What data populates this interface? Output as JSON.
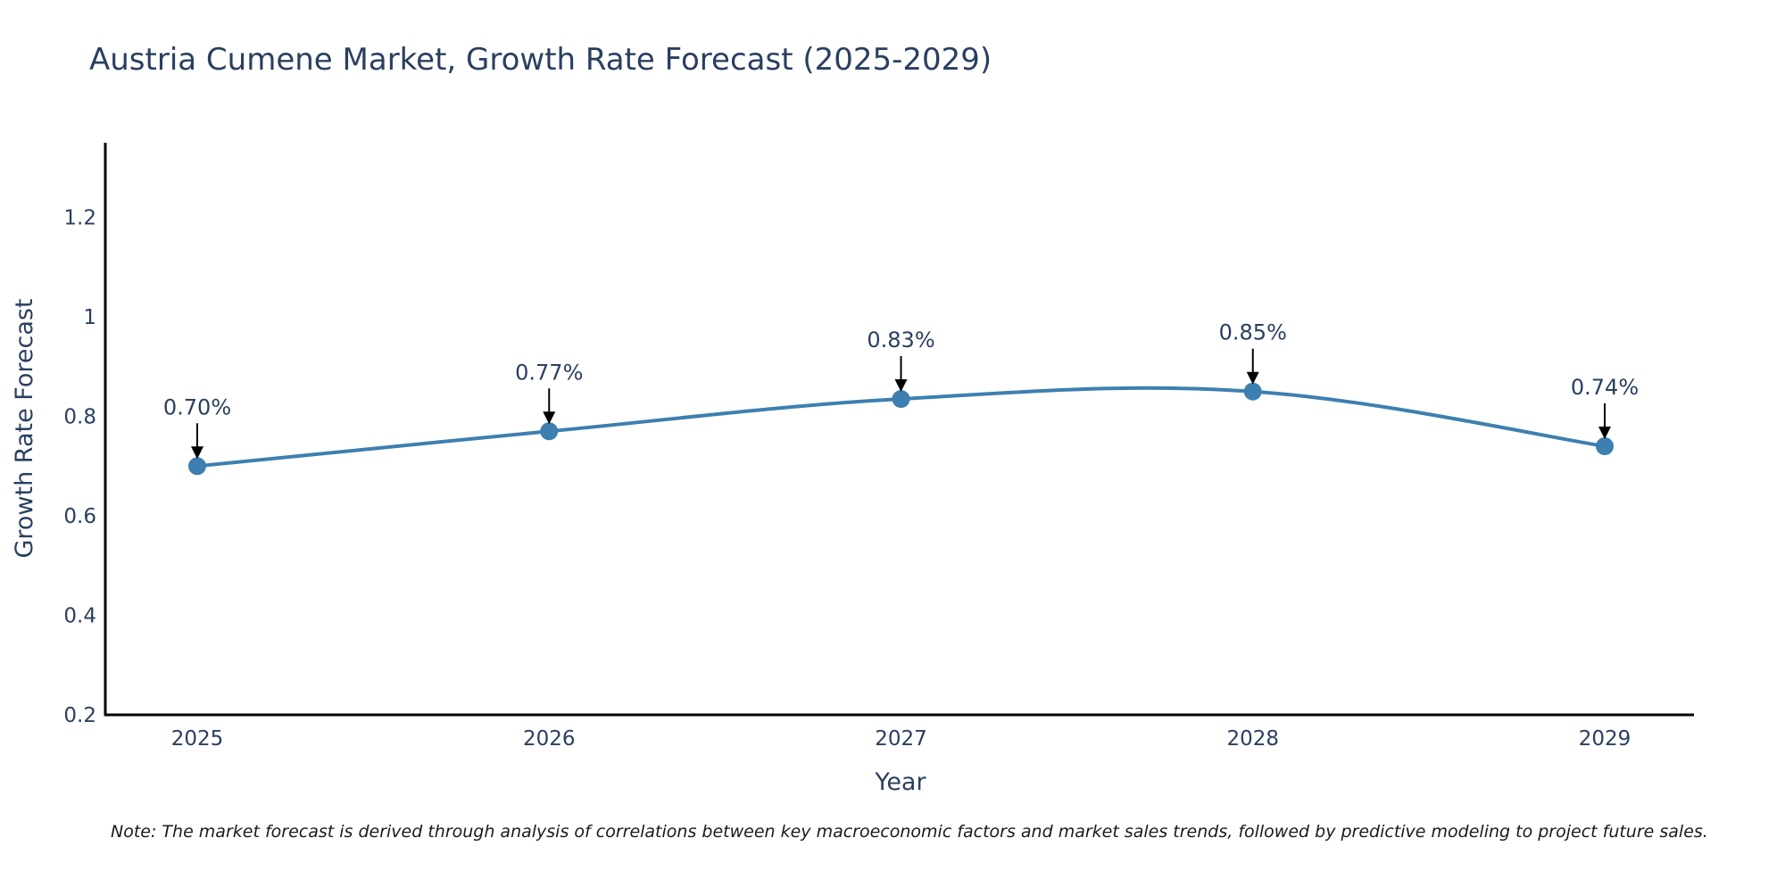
{
  "chart_data": {
    "type": "line",
    "title": "Austria Cumene Market, Growth Rate Forecast (2025-2029)",
    "xlabel": "Year",
    "ylabel": "Growth Rate Forecast",
    "categories": [
      "2025",
      "2026",
      "2027",
      "2028",
      "2029"
    ],
    "series": [
      {
        "name": "Growth Rate Forecast",
        "values": [
          0.7,
          0.77,
          0.835,
          0.85,
          0.74
        ],
        "labels": [
          "0.70%",
          "0.77%",
          "0.83%",
          "0.85%",
          "0.74%"
        ]
      }
    ],
    "ylim": [
      0.2,
      1.35
    ],
    "yticks": [
      0.2,
      0.4,
      0.6,
      0.8,
      1.0,
      1.2
    ],
    "ytick_labels": [
      "0.2",
      "0.4",
      "0.6",
      "0.8",
      "1",
      "1.2"
    ],
    "grid": false,
    "legend": "none",
    "line_color": "#3d7fb0",
    "marker_color": "#3d7fb0",
    "arrow_color": "#000000",
    "axis_color": "#000000"
  },
  "note": "Note: The market forecast is derived through analysis of correlations between key macroeconomic factors and market sales trends, followed by predictive modeling to project future sales."
}
